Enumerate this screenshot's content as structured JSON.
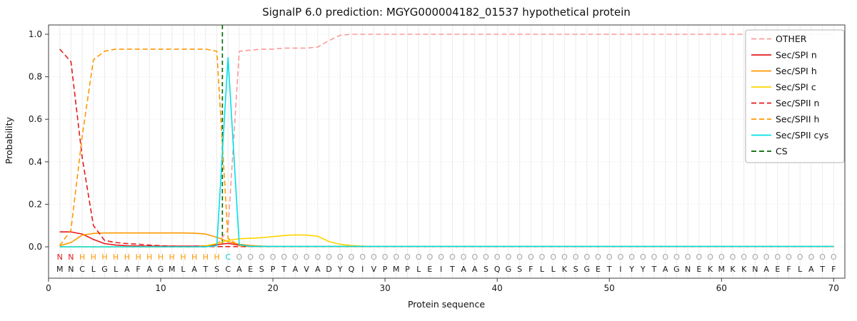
{
  "chart_data": {
    "type": "line",
    "title": "SignalP 6.0 prediction: MGYG000004182_01537 hypothetical protein",
    "xlabel": "Protein sequence",
    "ylabel": "Probability",
    "xlim": [
      0,
      71
    ],
    "ylim": [
      -0.15,
      1.05
    ],
    "xticks": [
      0,
      10,
      20,
      30,
      40,
      50,
      60,
      70
    ],
    "yticks": [
      0,
      0.2,
      0.4,
      0.6,
      0.8,
      1.0
    ],
    "grid": "vertical line per residue, light dotted horizontal",
    "legend_position": "upper right",
    "sequence": "MNCLGLAFAGMLATSCAESPTAVADYQIVPMPLEITAASQGSFLLKSGETIYYTAGNEKMKKNAEFLATF",
    "region_labels": "NNHHHHHHHHHHHHHCOOOOOOOOOOOOOOOOOOOOOOOOOOOOOOOOOOOOOOOOOOOOOOOOOOOOOO",
    "region_colors": {
      "N": "#e41a1c",
      "H": "#ff9800",
      "C": "#00cdd8",
      "O": "#a3a3a3"
    },
    "sequence_color": "#1a1a1a",
    "cs_position": 15.5,
    "cs_color": "#006400",
    "series": [
      {
        "name": "OTHER",
        "color": "#ff9999",
        "dash": true,
        "values": [
          0,
          0,
          0,
          0,
          0,
          0,
          0,
          0,
          0,
          0,
          0,
          0,
          0,
          0,
          0.01,
          0.08,
          0.92,
          0.925,
          0.93,
          0.93,
          0.935,
          0.935,
          0.935,
          0.94,
          0.97,
          0.995,
          1,
          1,
          1,
          1,
          1,
          1,
          1,
          1,
          1,
          1,
          1,
          1,
          1,
          1,
          1,
          1,
          1,
          1,
          1,
          1,
          1,
          1,
          1,
          1,
          1,
          1,
          1,
          1,
          1,
          1,
          1,
          1,
          1,
          1,
          1,
          1,
          1,
          1,
          1,
          1,
          1,
          1,
          1,
          1
        ]
      },
      {
        "name": "Sec/SPI n",
        "color": "#e41a1c",
        "dash": false,
        "values": [
          0.07,
          0.07,
          0.06,
          0.035,
          0.015,
          0.008,
          0.005,
          0.004,
          0.003,
          0.003,
          0.003,
          0.003,
          0.003,
          0.005,
          0.01,
          0.016,
          0.008,
          0.003,
          0.002,
          0.001,
          0.001,
          0.001,
          0.001,
          0.001,
          0.001,
          0.001,
          0.001,
          0.001,
          0.001,
          0.001,
          0.001,
          0.001,
          0.001,
          0.001,
          0.001,
          0.001,
          0.001,
          0.001,
          0.001,
          0.001,
          0.001,
          0.001,
          0.001,
          0.001,
          0.001,
          0.001,
          0.001,
          0.001,
          0.001,
          0.001,
          0.001,
          0.001,
          0.001,
          0.001,
          0.001,
          0.001,
          0.001,
          0.001,
          0.001,
          0.001,
          0.001,
          0.001,
          0.001,
          0.001,
          0.001,
          0.001,
          0.001,
          0.001,
          0.001,
          0.001
        ]
      },
      {
        "name": "Sec/SPI h",
        "color": "#ff9800",
        "dash": false,
        "values": [
          0.005,
          0.02,
          0.055,
          0.063,
          0.065,
          0.065,
          0.065,
          0.065,
          0.065,
          0.065,
          0.065,
          0.065,
          0.064,
          0.06,
          0.045,
          0.025,
          0.012,
          0.006,
          0.003,
          0.002,
          0.001,
          0.001,
          0.001,
          0.001,
          0.001,
          0.001,
          0.001,
          0.001,
          0.001,
          0.001,
          0.001,
          0.001,
          0.001,
          0.001,
          0.001,
          0.001,
          0.001,
          0.001,
          0.001,
          0.001,
          0.001,
          0.001,
          0.001,
          0.001,
          0.001,
          0.001,
          0.001,
          0.001,
          0.001,
          0.001,
          0.001,
          0.001,
          0.001,
          0.001,
          0.001,
          0.001,
          0.001,
          0.001,
          0.001,
          0.001,
          0.001,
          0.001,
          0.001,
          0.001,
          0.001,
          0.001,
          0.001,
          0.001,
          0.001,
          0.001
        ]
      },
      {
        "name": "Sec/SPI c",
        "color": "#ffd400",
        "dash": false,
        "values": [
          0,
          0,
          0,
          0,
          0,
          0,
          0,
          0,
          0,
          0,
          0,
          0,
          0,
          0.005,
          0.015,
          0.03,
          0.038,
          0.04,
          0.043,
          0.048,
          0.053,
          0.056,
          0.055,
          0.05,
          0.025,
          0.012,
          0.006,
          0.003,
          0.001,
          0.001,
          0.001,
          0.001,
          0.001,
          0.001,
          0.001,
          0.001,
          0.001,
          0.001,
          0.001,
          0.001,
          0.001,
          0.001,
          0.001,
          0.001,
          0.001,
          0.001,
          0.001,
          0.001,
          0.001,
          0.001,
          0.001,
          0.001,
          0.001,
          0.001,
          0.001,
          0.001,
          0.001,
          0.001,
          0.001,
          0.001,
          0.001,
          0.001,
          0.001,
          0.001,
          0.001,
          0.001,
          0.001,
          0.001,
          0.001,
          0.001
        ]
      },
      {
        "name": "Sec/SPII n",
        "color": "#e41a1c",
        "dash": true,
        "values": [
          0.93,
          0.87,
          0.42,
          0.1,
          0.03,
          0.02,
          0.015,
          0.012,
          0.008,
          0.005,
          0.003,
          0.002,
          0.001,
          0.001,
          0.001,
          0.001,
          0.001,
          0.001,
          0.001,
          0.001,
          0.001,
          0.001,
          0.001,
          0.001,
          0.001,
          0.001,
          0.001,
          0.001,
          0.001,
          0.001,
          0.001,
          0.001,
          0.001,
          0.001,
          0.001,
          0.001,
          0.001,
          0.001,
          0.001,
          0.001,
          0.001,
          0.001,
          0.001,
          0.001,
          0.001,
          0.001,
          0.001,
          0.001,
          0.001,
          0.001,
          0.001,
          0.001,
          0.001,
          0.001,
          0.001,
          0.001,
          0.001,
          0.001,
          0.001,
          0.001,
          0.001,
          0.001,
          0.001,
          0.001,
          0.001,
          0.001,
          0.001,
          0.001,
          0.001,
          0.001
        ]
      },
      {
        "name": "Sec/SPII h",
        "color": "#ff9800",
        "dash": true,
        "values": [
          0.005,
          0.08,
          0.52,
          0.88,
          0.92,
          0.93,
          0.93,
          0.93,
          0.93,
          0.93,
          0.93,
          0.93,
          0.93,
          0.93,
          0.92,
          0.04,
          0.005,
          0.001,
          0.001,
          0.001,
          0.001,
          0.001,
          0.001,
          0.001,
          0.001,
          0.001,
          0.001,
          0.001,
          0.001,
          0.001,
          0.001,
          0.001,
          0.001,
          0.001,
          0.001,
          0.001,
          0.001,
          0.001,
          0.001,
          0.001,
          0.001,
          0.001,
          0.001,
          0.001,
          0.001,
          0.001,
          0.001,
          0.001,
          0.001,
          0.001,
          0.001,
          0.001,
          0.001,
          0.001,
          0.001,
          0.001,
          0.001,
          0.001,
          0.001,
          0.001,
          0.001,
          0.001,
          0.001,
          0.001,
          0.001,
          0.001,
          0.001,
          0.001,
          0.001,
          0.001
        ]
      },
      {
        "name": "Sec/SPII cys",
        "color": "#00e0e8",
        "dash": false,
        "values": [
          0,
          0,
          0,
          0,
          0,
          0,
          0,
          0,
          0,
          0,
          0,
          0,
          0,
          0,
          0.005,
          0.89,
          0.01,
          0.002,
          0.002,
          0.002,
          0.002,
          0.002,
          0.002,
          0.002,
          0.002,
          0.002,
          0.002,
          0.002,
          0.002,
          0.002,
          0.002,
          0.002,
          0.002,
          0.002,
          0.002,
          0.002,
          0.002,
          0.002,
          0.002,
          0.002,
          0.002,
          0.002,
          0.002,
          0.002,
          0.002,
          0.002,
          0.002,
          0.002,
          0.002,
          0.002,
          0.002,
          0.002,
          0.002,
          0.002,
          0.002,
          0.002,
          0.002,
          0.002,
          0.002,
          0.002,
          0.002,
          0.002,
          0.002,
          0.002,
          0.002,
          0.002,
          0.002,
          0.002,
          0.002,
          0.002
        ]
      }
    ],
    "legend": [
      {
        "label": "OTHER",
        "color": "#ff9999",
        "dash": true
      },
      {
        "label": "Sec/SPI n",
        "color": "#e41a1c",
        "dash": false
      },
      {
        "label": "Sec/SPI h",
        "color": "#ff9800",
        "dash": false
      },
      {
        "label": "Sec/SPI c",
        "color": "#ffd400",
        "dash": false
      },
      {
        "label": "Sec/SPII n",
        "color": "#e41a1c",
        "dash": true
      },
      {
        "label": "Sec/SPII h",
        "color": "#ff9800",
        "dash": true
      },
      {
        "label": "Sec/SPII cys",
        "color": "#00e0e8",
        "dash": false
      },
      {
        "label": "CS",
        "color": "#006400",
        "dash": true
      }
    ]
  }
}
